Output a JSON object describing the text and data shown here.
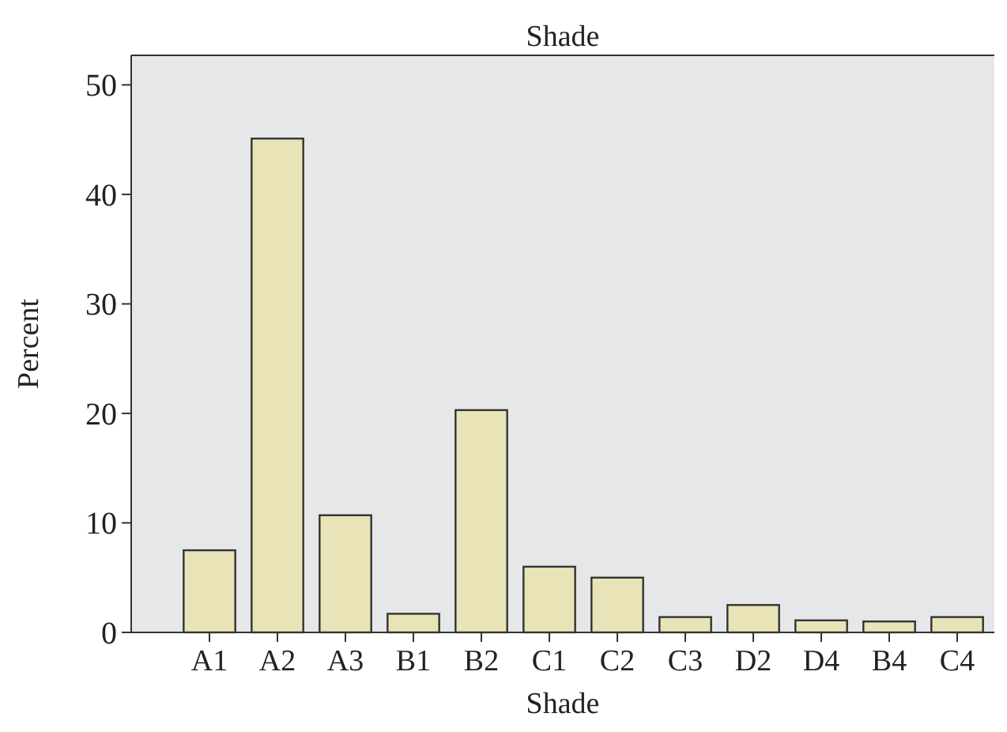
{
  "chart_data": {
    "type": "bar",
    "title": "Shade",
    "xlabel": "Shade",
    "ylabel": "Percent",
    "categories": [
      "A1",
      "A2",
      "A3",
      "B1",
      "B2",
      "C1",
      "C2",
      "C3",
      "D2",
      "D4",
      "B4",
      "C4"
    ],
    "values": [
      7.5,
      45.1,
      10.7,
      1.7,
      20.3,
      6.0,
      5.0,
      1.4,
      2.5,
      1.1,
      1.0,
      1.4
    ],
    "color": "#e8e4b8",
    "ylim": [
      0,
      52.7
    ],
    "yticks": [
      0,
      10,
      20,
      30,
      40,
      50
    ],
    "grid": false
  }
}
